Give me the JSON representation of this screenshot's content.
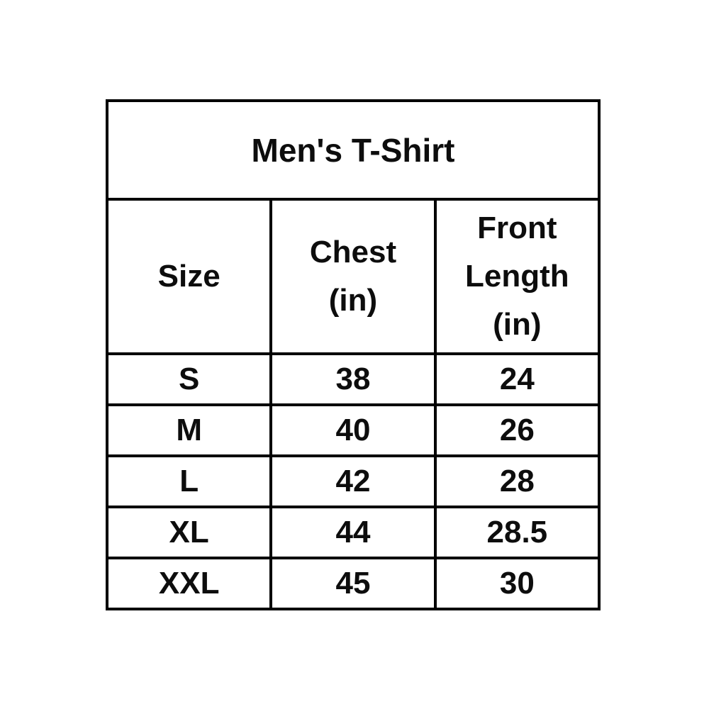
{
  "size_chart": {
    "title": "Men's T-Shirt",
    "columns": [
      {
        "label": "Size",
        "lines": [
          "Size"
        ]
      },
      {
        "label": "Chest (in)",
        "lines": [
          "Chest",
          "(in)"
        ]
      },
      {
        "label": "Front Length (in)",
        "lines": [
          "Front",
          "Length",
          "(in)"
        ]
      }
    ],
    "rows": [
      {
        "size": "S",
        "chest": "38",
        "front_length": "24"
      },
      {
        "size": "M",
        "chest": "40",
        "front_length": "26"
      },
      {
        "size": "L",
        "chest": "42",
        "front_length": "28"
      },
      {
        "size": "XL",
        "chest": "44",
        "front_length": "28.5"
      },
      {
        "size": "XXL",
        "chest": "45",
        "front_length": "30"
      }
    ]
  },
  "colors": {
    "border": "#000000",
    "text": "#0d0d0d",
    "background": "#ffffff"
  }
}
